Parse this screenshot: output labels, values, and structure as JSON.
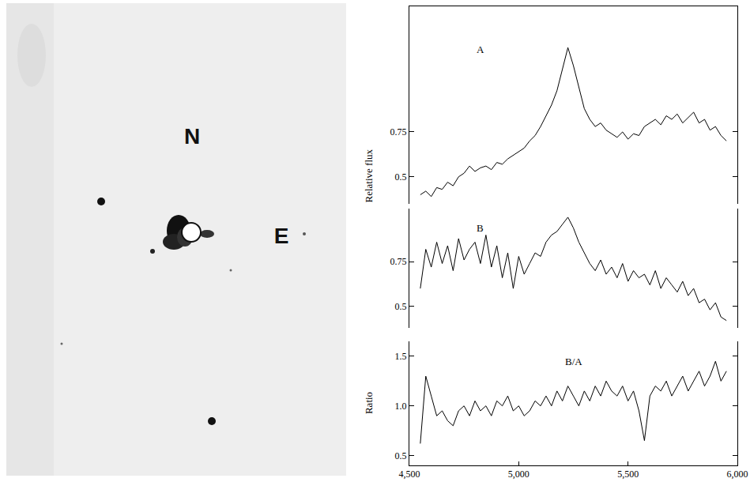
{
  "image": {
    "north_label": "N",
    "east_label": "E"
  },
  "chart_data": [
    {
      "type": "line",
      "x": [
        4550,
        4575,
        4600,
        4625,
        4650,
        4675,
        4700,
        4725,
        4750,
        4775,
        4800,
        4825,
        4850,
        4875,
        4900,
        4925,
        4950,
        4975,
        5000,
        5025,
        5050,
        5075,
        5100,
        5125,
        5150,
        5175,
        5200,
        5225,
        5250,
        5275,
        5300,
        5325,
        5350,
        5375,
        5400,
        5425,
        5450,
        5475,
        5500,
        5525,
        5550,
        5575,
        5600,
        5625,
        5650,
        5675,
        5700,
        5725,
        5750,
        5775,
        5800,
        5825,
        5850,
        5875,
        5900,
        5925,
        5950
      ],
      "series": [
        {
          "name": "A",
          "color": "#000000",
          "values": [
            0.4,
            0.42,
            0.39,
            0.44,
            0.43,
            0.47,
            0.45,
            0.5,
            0.52,
            0.56,
            0.53,
            0.55,
            0.56,
            0.54,
            0.58,
            0.57,
            0.6,
            0.62,
            0.64,
            0.66,
            0.7,
            0.73,
            0.78,
            0.84,
            0.9,
            0.98,
            1.1,
            1.22,
            1.12,
            1.0,
            0.88,
            0.82,
            0.78,
            0.8,
            0.76,
            0.74,
            0.72,
            0.75,
            0.71,
            0.74,
            0.73,
            0.78,
            0.8,
            0.82,
            0.79,
            0.84,
            0.82,
            0.85,
            0.8,
            0.83,
            0.86,
            0.8,
            0.82,
            0.76,
            0.78,
            0.73,
            0.7
          ]
        }
      ],
      "xlim": [
        4500,
        6000
      ],
      "ylim": [
        0.35,
        1.45
      ],
      "yticks": [
        0.5,
        0.75
      ],
      "ylabel": "Relative flux",
      "tick_labels": "y",
      "grid": false
    },
    {
      "type": "line",
      "x": [
        4550,
        4575,
        4600,
        4625,
        4650,
        4675,
        4700,
        4725,
        4750,
        4775,
        4800,
        4825,
        4850,
        4875,
        4900,
        4925,
        4950,
        4975,
        5000,
        5025,
        5050,
        5075,
        5100,
        5125,
        5150,
        5175,
        5200,
        5225,
        5250,
        5275,
        5300,
        5325,
        5350,
        5375,
        5400,
        5425,
        5450,
        5475,
        5500,
        5525,
        5550,
        5575,
        5600,
        5625,
        5650,
        5675,
        5700,
        5725,
        5750,
        5775,
        5800,
        5825,
        5850,
        5875,
        5900,
        5925,
        5950
      ],
      "series": [
        {
          "name": "B",
          "color": "#000000",
          "values": [
            0.6,
            0.82,
            0.72,
            0.86,
            0.74,
            0.84,
            0.7,
            0.88,
            0.76,
            0.82,
            0.86,
            0.74,
            0.9,
            0.72,
            0.84,
            0.66,
            0.8,
            0.6,
            0.78,
            0.68,
            0.74,
            0.8,
            0.78,
            0.86,
            0.9,
            0.92,
            0.96,
            1.0,
            0.94,
            0.86,
            0.8,
            0.74,
            0.7,
            0.76,
            0.68,
            0.72,
            0.66,
            0.74,
            0.64,
            0.7,
            0.66,
            0.68,
            0.62,
            0.7,
            0.6,
            0.66,
            0.62,
            0.58,
            0.64,
            0.56,
            0.6,
            0.52,
            0.54,
            0.48,
            0.52,
            0.44,
            0.42
          ]
        }
      ],
      "xlim": [
        4500,
        6000
      ],
      "ylim": [
        0.38,
        1.05
      ],
      "yticks": [
        0.5,
        0.75
      ],
      "tick_labels": "y",
      "grid": false
    },
    {
      "type": "line",
      "x": [
        4550,
        4575,
        4600,
        4625,
        4650,
        4675,
        4700,
        4725,
        4750,
        4775,
        4800,
        4825,
        4850,
        4875,
        4900,
        4925,
        4950,
        4975,
        5000,
        5025,
        5050,
        5075,
        5100,
        5125,
        5150,
        5175,
        5200,
        5225,
        5250,
        5275,
        5300,
        5325,
        5350,
        5375,
        5400,
        5425,
        5450,
        5475,
        5500,
        5525,
        5550,
        5575,
        5600,
        5625,
        5650,
        5675,
        5700,
        5725,
        5750,
        5775,
        5800,
        5825,
        5850,
        5875,
        5900,
        5925,
        5950
      ],
      "series": [
        {
          "name": "B/A",
          "color": "#000000",
          "values": [
            0.62,
            1.3,
            1.1,
            0.9,
            0.95,
            0.85,
            0.8,
            0.95,
            1.0,
            0.9,
            1.05,
            0.95,
            1.0,
            0.9,
            1.05,
            1.0,
            1.1,
            0.95,
            1.0,
            0.9,
            0.95,
            1.05,
            1.0,
            1.1,
            1.0,
            1.15,
            1.05,
            1.2,
            1.1,
            1.0,
            1.15,
            1.05,
            1.2,
            1.1,
            1.25,
            1.15,
            1.1,
            1.2,
            1.05,
            1.15,
            0.95,
            0.65,
            1.1,
            1.2,
            1.15,
            1.25,
            1.1,
            1.2,
            1.3,
            1.15,
            1.25,
            1.35,
            1.2,
            1.3,
            1.45,
            1.25,
            1.35
          ]
        }
      ],
      "xlim": [
        4500,
        6000
      ],
      "xticks": [
        {
          "value": 4500,
          "label": "4,500"
        },
        {
          "value": 5000,
          "label": "5,000"
        },
        {
          "value": 5500,
          "label": "5,500"
        },
        {
          "value": 6000,
          "label": "6,000"
        }
      ],
      "ylim": [
        0.4,
        1.65
      ],
      "yticks": [
        0.5,
        {
          "value": 1,
          "label": "1.0"
        },
        {
          "value": 1.5,
          "label": "1.5"
        }
      ],
      "ylabel": "Ratio",
      "grid": false
    }
  ]
}
